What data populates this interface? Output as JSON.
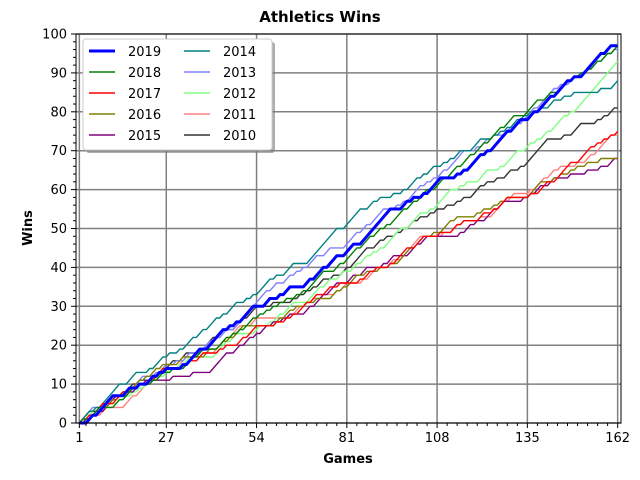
{
  "chart_data": {
    "type": "line",
    "title": "Athletics Wins",
    "xlabel": "Games",
    "ylabel": "Wins",
    "xlim": [
      0,
      163
    ],
    "ylim": [
      0,
      100
    ],
    "xticks": [
      1,
      27,
      54,
      81,
      108,
      135,
      162
    ],
    "yticks": [
      0,
      10,
      20,
      30,
      40,
      50,
      60,
      70,
      80,
      90,
      100
    ],
    "grid": true,
    "legend": {
      "position": "top-left",
      "columns": 2
    },
    "series": [
      {
        "name": "2019",
        "color": "#0000ff",
        "bold": true,
        "points": [
          [
            1,
            0
          ],
          [
            10,
            6
          ],
          [
            20,
            10
          ],
          [
            30,
            14
          ],
          [
            40,
            20
          ],
          [
            54,
            30
          ],
          [
            60,
            32
          ],
          [
            70,
            37
          ],
          [
            81,
            44
          ],
          [
            90,
            51
          ],
          [
            100,
            57
          ],
          [
            108,
            62
          ],
          [
            120,
            68
          ],
          [
            130,
            75
          ],
          [
            135,
            78
          ],
          [
            140,
            82
          ],
          [
            150,
            89
          ],
          [
            155,
            93
          ],
          [
            160,
            97
          ],
          [
            162,
            97
          ]
        ]
      },
      {
        "name": "2018",
        "color": "#008000",
        "points": [
          [
            1,
            0
          ],
          [
            10,
            4
          ],
          [
            20,
            10
          ],
          [
            30,
            14
          ],
          [
            40,
            19
          ],
          [
            54,
            27
          ],
          [
            60,
            30
          ],
          [
            70,
            35
          ],
          [
            81,
            42
          ],
          [
            90,
            49
          ],
          [
            100,
            56
          ],
          [
            108,
            61
          ],
          [
            120,
            70
          ],
          [
            130,
            78
          ],
          [
            135,
            80
          ],
          [
            140,
            83
          ],
          [
            150,
            89
          ],
          [
            155,
            92
          ],
          [
            162,
            97
          ]
        ]
      },
      {
        "name": "2017",
        "color": "#ff0000",
        "points": [
          [
            1,
            0
          ],
          [
            10,
            5
          ],
          [
            20,
            10
          ],
          [
            30,
            14
          ],
          [
            40,
            18
          ],
          [
            54,
            25
          ],
          [
            60,
            26
          ],
          [
            70,
            31
          ],
          [
            81,
            36
          ],
          [
            90,
            40
          ],
          [
            100,
            45
          ],
          [
            108,
            48
          ],
          [
            120,
            52
          ],
          [
            130,
            58
          ],
          [
            135,
            58
          ],
          [
            140,
            61
          ],
          [
            150,
            67
          ],
          [
            155,
            71
          ],
          [
            162,
            75
          ]
        ]
      },
      {
        "name": "2016",
        "color": "#808000",
        "points": [
          [
            1,
            0
          ],
          [
            10,
            5
          ],
          [
            20,
            11
          ],
          [
            30,
            15
          ],
          [
            40,
            19
          ],
          [
            54,
            25
          ],
          [
            60,
            26
          ],
          [
            70,
            31
          ],
          [
            81,
            35
          ],
          [
            90,
            39
          ],
          [
            100,
            45
          ],
          [
            108,
            49
          ],
          [
            120,
            54
          ],
          [
            130,
            58
          ],
          [
            135,
            58
          ],
          [
            140,
            62
          ],
          [
            150,
            66
          ],
          [
            155,
            67
          ],
          [
            162,
            68
          ]
        ]
      },
      {
        "name": "2015",
        "color": "#800080",
        "points": [
          [
            1,
            0
          ],
          [
            10,
            5
          ],
          [
            20,
            10
          ],
          [
            30,
            12
          ],
          [
            40,
            13
          ],
          [
            54,
            23
          ],
          [
            60,
            26
          ],
          [
            70,
            30
          ],
          [
            81,
            36
          ],
          [
            90,
            40
          ],
          [
            100,
            44
          ],
          [
            108,
            48
          ],
          [
            120,
            52
          ],
          [
            130,
            57
          ],
          [
            135,
            58
          ],
          [
            140,
            61
          ],
          [
            150,
            64
          ],
          [
            155,
            65
          ],
          [
            162,
            68
          ]
        ]
      },
      {
        "name": "2014",
        "color": "#008080",
        "points": [
          [
            1,
            0
          ],
          [
            10,
            7
          ],
          [
            20,
            13
          ],
          [
            30,
            18
          ],
          [
            40,
            25
          ],
          [
            54,
            33
          ],
          [
            60,
            38
          ],
          [
            70,
            42
          ],
          [
            81,
            51
          ],
          [
            90,
            57
          ],
          [
            100,
            61
          ],
          [
            108,
            66
          ],
          [
            120,
            72
          ],
          [
            130,
            76
          ],
          [
            135,
            79
          ],
          [
            140,
            81
          ],
          [
            150,
            85
          ],
          [
            155,
            85
          ],
          [
            162,
            88
          ]
        ]
      },
      {
        "name": "2013",
        "color": "#8080ff",
        "points": [
          [
            1,
            0
          ],
          [
            10,
            6
          ],
          [
            20,
            12
          ],
          [
            30,
            16
          ],
          [
            40,
            21
          ],
          [
            54,
            31
          ],
          [
            60,
            36
          ],
          [
            70,
            41
          ],
          [
            81,
            46
          ],
          [
            90,
            53
          ],
          [
            100,
            58
          ],
          [
            108,
            63
          ],
          [
            120,
            71
          ],
          [
            130,
            76
          ],
          [
            135,
            79
          ],
          [
            140,
            83
          ],
          [
            150,
            89
          ],
          [
            155,
            92
          ],
          [
            162,
            96
          ]
        ]
      },
      {
        "name": "2012",
        "color": "#80ff80",
        "points": [
          [
            1,
            0
          ],
          [
            10,
            5
          ],
          [
            20,
            9
          ],
          [
            30,
            14
          ],
          [
            40,
            17
          ],
          [
            54,
            24
          ],
          [
            60,
            27
          ],
          [
            70,
            32
          ],
          [
            81,
            39
          ],
          [
            90,
            44
          ],
          [
            100,
            51
          ],
          [
            108,
            56
          ],
          [
            120,
            62
          ],
          [
            130,
            68
          ],
          [
            135,
            71
          ],
          [
            140,
            74
          ],
          [
            150,
            81
          ],
          [
            155,
            86
          ],
          [
            162,
            94
          ]
        ]
      },
      {
        "name": "2011",
        "color": "#ff8080",
        "points": [
          [
            1,
            0
          ],
          [
            10,
            4
          ],
          [
            20,
            9
          ],
          [
            30,
            14
          ],
          [
            40,
            18
          ],
          [
            54,
            27
          ],
          [
            60,
            27
          ],
          [
            70,
            31
          ],
          [
            81,
            36
          ],
          [
            90,
            40
          ],
          [
            100,
            45
          ],
          [
            108,
            48
          ],
          [
            120,
            52
          ],
          [
            130,
            58
          ],
          [
            135,
            59
          ],
          [
            140,
            63
          ],
          [
            150,
            67
          ],
          [
            155,
            69
          ],
          [
            162,
            74
          ]
        ]
      },
      {
        "name": "2010",
        "color": "#333333",
        "points": [
          [
            1,
            0
          ],
          [
            10,
            5
          ],
          [
            20,
            11
          ],
          [
            30,
            16
          ],
          [
            40,
            21
          ],
          [
            54,
            30
          ],
          [
            60,
            31
          ],
          [
            70,
            34
          ],
          [
            81,
            40
          ],
          [
            90,
            46
          ],
          [
            100,
            51
          ],
          [
            108,
            55
          ],
          [
            120,
            60
          ],
          [
            130,
            65
          ],
          [
            135,
            67
          ],
          [
            140,
            72
          ],
          [
            150,
            76
          ],
          [
            155,
            77
          ],
          [
            162,
            81
          ]
        ]
      }
    ]
  }
}
